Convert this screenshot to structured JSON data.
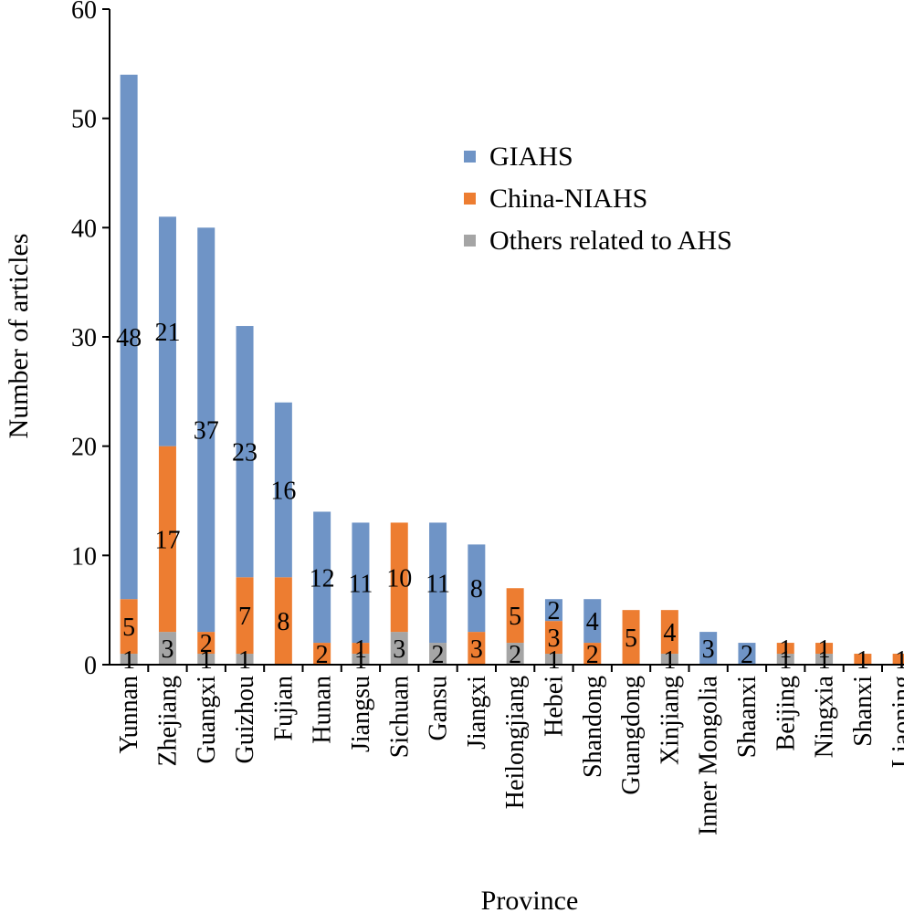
{
  "chart_data": {
    "type": "bar",
    "stacked": true,
    "xlabel": "Province",
    "ylabel": "Number of articles",
    "ylim": [
      0,
      60
    ],
    "yticks": [
      0,
      10,
      20,
      30,
      40,
      50,
      60
    ],
    "legend_position": "upper-center",
    "categories": [
      "Yunnan",
      "Zhejiang",
      "Guangxi",
      "Guizhou",
      "Fujian",
      "Hunan",
      "Jiangsu",
      "Sichuan",
      "Gansu",
      "Jiangxi",
      "Heilongjiang",
      "Hebei",
      "Shandong",
      "Guangdong",
      "Xinjiang",
      "Inner Mongolia",
      "Shaanxi",
      "Beijing",
      "Ningxia",
      "Shanxi",
      "Liaoning"
    ],
    "series": [
      {
        "name": "Others related to AHS",
        "color": "#a5a5a5",
        "values": [
          1,
          3,
          1,
          1,
          0,
          0,
          1,
          3,
          2,
          0,
          2,
          1,
          0,
          0,
          1,
          0,
          0,
          1,
          1,
          0,
          0
        ]
      },
      {
        "name": "China-NIAHS",
        "color": "#ed7d31",
        "values": [
          5,
          17,
          2,
          7,
          8,
          2,
          1,
          10,
          0,
          3,
          5,
          3,
          2,
          5,
          4,
          0,
          0,
          1,
          1,
          1,
          1
        ]
      },
      {
        "name": "GIAHS",
        "color": "#6f94c6",
        "values": [
          48,
          21,
          37,
          23,
          16,
          12,
          11,
          0,
          11,
          8,
          0,
          2,
          4,
          0,
          0,
          3,
          2,
          0,
          0,
          0,
          0
        ]
      }
    ],
    "legend_order": [
      "GIAHS",
      "China-NIAHS",
      "Others related to AHS"
    ]
  }
}
